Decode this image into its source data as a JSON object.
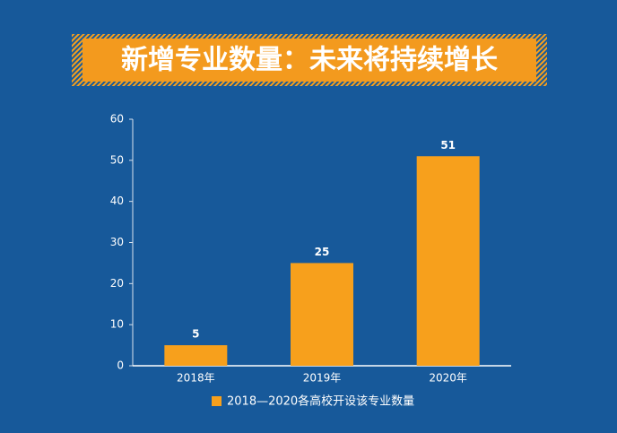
{
  "chart_data": {
    "type": "bar",
    "title": "新增专业数量：未来将持续增长",
    "categories": [
      "2018年",
      "2019年",
      "2020年"
    ],
    "series": [
      {
        "name": "2018—2020各高校开设该专业数量",
        "color": "#f7a01c",
        "values": [
          5,
          25,
          51
        ]
      }
    ],
    "ylim": [
      0,
      60
    ],
    "yticks": [
      0,
      10,
      20,
      30,
      40,
      50,
      60
    ]
  }
}
